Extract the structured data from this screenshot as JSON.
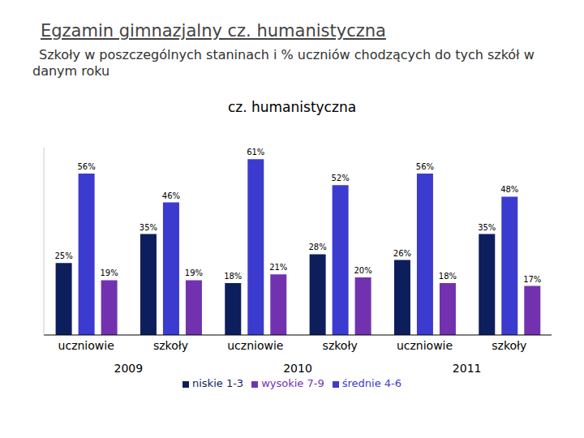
{
  "header": {
    "title": "Egzamin gimnazjalny cz. humanistyczna",
    "subtitle": "Szkoły w poszczególnych staninach i % uczniów chodzących do tych szkół w danym roku"
  },
  "chart_data": {
    "type": "bar",
    "title": "cz. humanistyczna",
    "categories": [
      "uczniowie",
      "szkoły",
      "uczniowie",
      "szkoły",
      "uczniowie",
      "szkoły"
    ],
    "category_groups": [
      "2009",
      "2009",
      "2010",
      "2010",
      "2011",
      "2011"
    ],
    "series": [
      {
        "name": "niskie 1-3",
        "color": "#0c1f5c",
        "values": [
          25,
          35,
          18,
          28,
          26,
          35
        ],
        "value_labels": [
          "25%",
          "35%",
          "18%",
          "28%",
          "26%",
          "35%"
        ]
      },
      {
        "name": "średnie 4-6",
        "color": "#3b3bd0",
        "values": [
          56,
          46,
          61,
          52,
          56,
          48
        ],
        "value_labels": [
          "56%",
          "46%",
          "61%",
          "52%",
          "56%",
          "48%"
        ]
      },
      {
        "name": "wysokie 7-9",
        "color": "#7232b0",
        "values": [
          19,
          19,
          21,
          20,
          18,
          17
        ],
        "value_labels": [
          "19%",
          "19%",
          "21%",
          "20%",
          "18%",
          "17%"
        ]
      }
    ],
    "ylim": [
      0,
      65
    ],
    "tick_labels": "x",
    "data_labels": true,
    "legend": "bottom",
    "grid": false
  }
}
